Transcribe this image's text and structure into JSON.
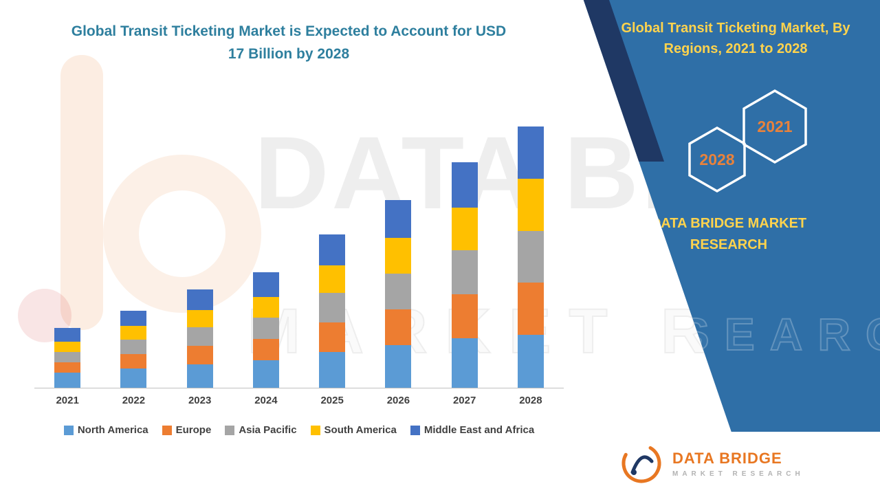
{
  "header": {
    "title": "Global Transit Ticketing Market is Expected to Account for USD 17 Billion by 2028"
  },
  "panel": {
    "heading": "Global Transit Ticketing Market, By Regions, 2021 to 2028",
    "years": [
      "2028",
      "2021"
    ],
    "brand": "DATA BRIDGE MARKET RESEARCH"
  },
  "footer_logo": {
    "name": "DATA BRIDGE",
    "subtitle": "MARKET RESEARCH"
  },
  "watermark": {
    "logo_text": "DATA BRIDGE",
    "outline_text": "MARKET RESEARCH",
    "panel_outline_text": "RESEARCH"
  },
  "colors": {
    "title_teal": "#2E7F9E",
    "panel_blue": "#2F6FA7",
    "navy_accent": "#1F3864",
    "heading_yellow": "#FFD34D",
    "hexagon_orange": "#E8823C",
    "logo_orange": "#E87722"
  },
  "chart_data": {
    "type": "bar",
    "stacked": true,
    "title": "Global Transit Ticketing Market is Expected to Account for USD 17 Billion by 2028",
    "unit": "USD Billion",
    "categories": [
      "2021",
      "2022",
      "2023",
      "2024",
      "2025",
      "2026",
      "2027",
      "2028"
    ],
    "series": [
      {
        "name": "North America",
        "color": "#5B9BD5",
        "values": [
          1.0,
          1.25,
          1.5,
          1.8,
          2.3,
          2.75,
          3.2,
          3.45
        ]
      },
      {
        "name": "Europe",
        "color": "#ED7D31",
        "values": [
          0.65,
          0.95,
          1.2,
          1.4,
          1.9,
          2.3,
          2.85,
          3.4
        ]
      },
      {
        "name": "Asia Pacific",
        "color": "#A5A5A5",
        "values": [
          0.65,
          0.95,
          1.2,
          1.4,
          1.9,
          2.3,
          2.85,
          3.35
        ]
      },
      {
        "name": "South America",
        "color": "#FFC000",
        "values": [
          0.65,
          0.9,
          1.1,
          1.35,
          1.8,
          2.3,
          2.75,
          3.4
        ]
      },
      {
        "name": "Middle East and Africa",
        "color": "#4472C4",
        "values": [
          0.9,
          1.0,
          1.35,
          1.6,
          2.0,
          2.45,
          2.95,
          3.4
        ]
      }
    ],
    "totals": [
      3.85,
      5.05,
      6.35,
      7.55,
      9.9,
      12.1,
      14.6,
      17.0
    ],
    "ylim": [
      0,
      17.5
    ],
    "grid": false,
    "y_axis_visible": false,
    "legend_position": "bottom"
  }
}
